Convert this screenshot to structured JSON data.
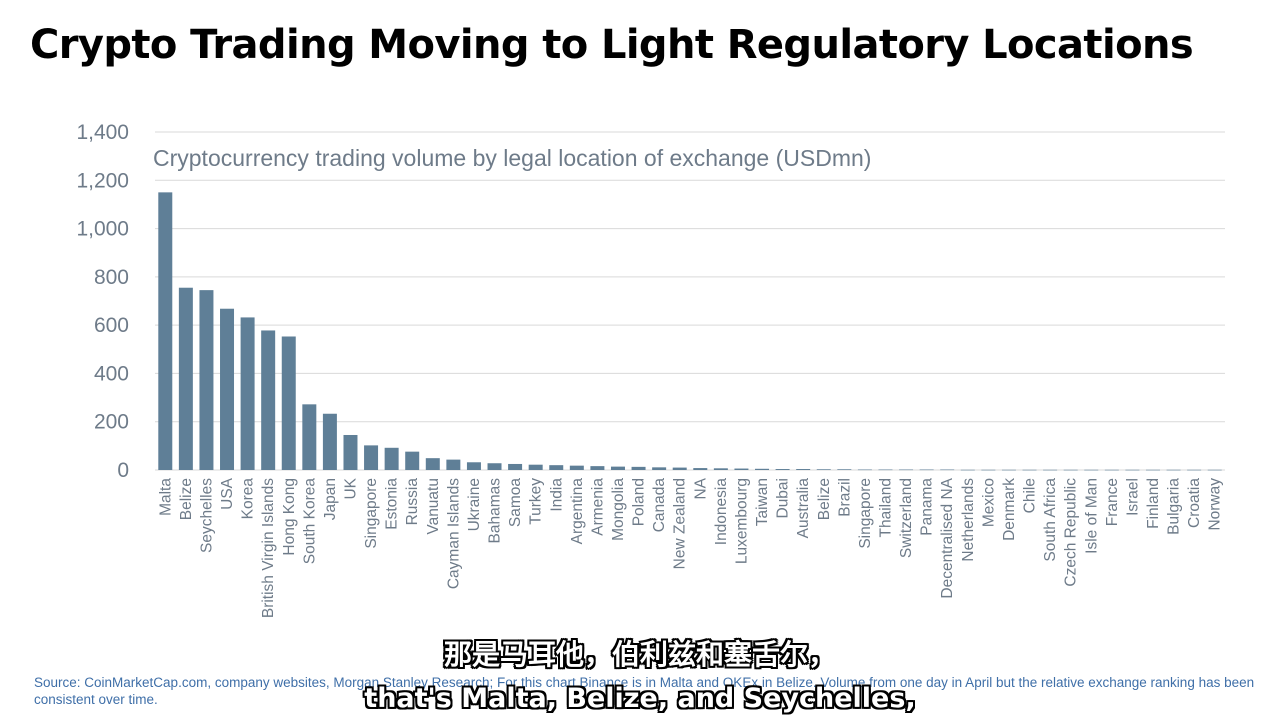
{
  "slide": {
    "title": "Crypto Trading Moving to Light Regulatory Locations",
    "source": "Source: CoinMarketCap.com, company websites, Morgan Stanley Research; For this chart Binance is in Malta and OKEx in Belize. Volume from one day in April but the relative exchange ranking has been consistent over time."
  },
  "subtitles": {
    "chinese": "那是马耳他，伯利兹和塞舌尔，",
    "english": "that's Malta, Belize, and Seychelles,"
  },
  "colors": {
    "bar": "#5f7f97",
    "text": "#6e7b89",
    "grid": "#d9d9d9"
  },
  "chart_data": {
    "type": "bar",
    "title": "Cryptocurrency trading volume by legal location of exchange (USDmn)",
    "xlabel": "",
    "ylabel": "",
    "ylim": [
      0,
      1400
    ],
    "yticks": [
      "0",
      "200",
      "400",
      "600",
      "800",
      "1,000",
      "1,200",
      "1,400"
    ],
    "yticks_values": [
      0,
      200,
      400,
      600,
      800,
      1000,
      1200,
      1400
    ],
    "grid": true,
    "legend": "none",
    "categories": [
      "Malta",
      "Belize",
      "Seychelles",
      "USA",
      "Korea",
      "British Virgin Islands",
      "Hong Kong",
      "South Korea",
      "Japan",
      "UK",
      "Singapore",
      "Estonia",
      "Russia",
      "Vanuatu",
      "Cayman Islands",
      "Ukraine",
      "Bahamas",
      "Samoa",
      "Turkey",
      "India",
      "Argentina",
      "Armenia",
      "Mongolia",
      "Poland",
      "Canada",
      "New Zealand",
      "NA",
      "Indonesia",
      "Luxembourg",
      "Taiwan",
      "Dubai",
      "Australia",
      "Belize",
      "Brazil",
      "Singapore",
      "Thailand",
      "Switzerland",
      "Panama",
      "Decentralised NA",
      "Netherlands",
      "Mexico",
      "Denmark",
      "Chile",
      "South Africa",
      "Czech Republic",
      "Isle of Man",
      "France",
      "Israel",
      "Finland",
      "Bulgaria",
      "Croatia",
      "Norway"
    ],
    "values": [
      1150,
      755,
      745,
      668,
      632,
      578,
      553,
      272,
      233,
      145,
      102,
      92,
      76,
      49,
      43,
      32,
      28,
      25,
      22,
      20,
      18,
      16,
      14,
      13,
      11,
      10,
      8,
      7,
      6,
      5,
      4,
      4,
      3,
      3,
      2,
      2,
      2,
      2,
      2,
      1,
      1,
      1,
      1,
      1,
      1,
      1,
      1,
      1,
      1,
      1,
      1,
      1
    ]
  }
}
